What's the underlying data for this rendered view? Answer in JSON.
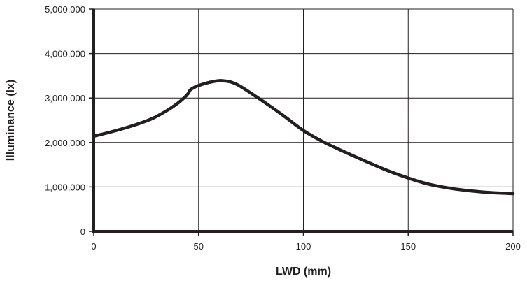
{
  "chart_data": {
    "type": "line",
    "title": "",
    "xlabel": "LWD (mm)",
    "ylabel": "Illuminance (lx)",
    "xlim": [
      0,
      200
    ],
    "ylim": [
      0,
      5000000
    ],
    "x_ticks": [
      {
        "value": 0,
        "label": "0"
      },
      {
        "value": 50,
        "label": "50"
      },
      {
        "value": 100,
        "label": "100"
      },
      {
        "value": 150,
        "label": "150"
      },
      {
        "value": 200,
        "label": "200"
      }
    ],
    "y_ticks": [
      {
        "value": 0,
        "label": "0"
      },
      {
        "value": 1000000,
        "label": "1,000,000"
      },
      {
        "value": 2000000,
        "label": "2,000,000"
      },
      {
        "value": 3000000,
        "label": "3,000,000"
      },
      {
        "value": 4000000,
        "label": "4,000,000"
      },
      {
        "value": 5000000,
        "label": "5,000,000"
      }
    ],
    "grid": true,
    "legend": "none",
    "line_color": "#231f20",
    "series": [
      {
        "x": [
          0,
          10,
          20,
          28,
          35,
          40,
          43,
          45,
          46,
          48,
          50,
          55,
          60,
          63,
          66,
          70,
          80,
          90,
          100,
          110,
          120,
          130,
          140,
          150,
          160,
          170,
          180,
          190,
          200
        ],
        "y": [
          2140000,
          2260000,
          2400000,
          2540000,
          2720000,
          2880000,
          3000000,
          3100000,
          3180000,
          3240000,
          3280000,
          3350000,
          3390000,
          3380000,
          3350000,
          3260000,
          2950000,
          2620000,
          2270000,
          2000000,
          1780000,
          1570000,
          1370000,
          1200000,
          1060000,
          970000,
          910000,
          870000,
          850000
        ]
      }
    ]
  }
}
